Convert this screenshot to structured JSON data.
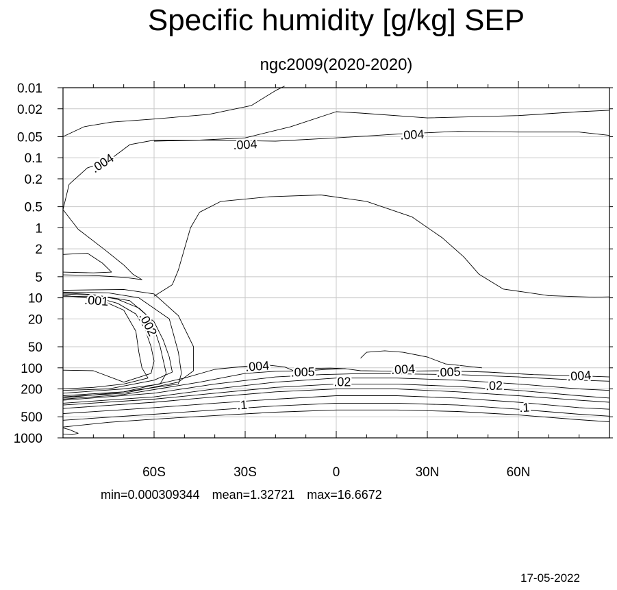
{
  "chart_data": {
    "type": "contour",
    "title": "Specific humidity [g/kg] SEP",
    "subtitle": "ngc2009(2020-2020)",
    "x_axis": {
      "range": [
        -90,
        90
      ],
      "tick_values": [
        -60,
        -30,
        0,
        30,
        60
      ],
      "tick_labels": [
        "60S",
        "30S",
        "0",
        "30N",
        "60N"
      ],
      "minor_step": 10
    },
    "y_axis": {
      "scale": "log",
      "direction": "inverted",
      "range": [
        0.01,
        1000
      ],
      "tick_values": [
        0.01,
        0.02,
        0.05,
        0.1,
        0.2,
        0.5,
        1,
        2,
        5,
        10,
        20,
        50,
        100,
        200,
        500,
        1000
      ],
      "tick_labels": [
        "0.01",
        "0.02",
        "0.05",
        "0.1",
        "0.2",
        "0.5",
        "1",
        "2",
        "5",
        "10",
        "20",
        "50",
        "100",
        "200",
        "500",
        "1000"
      ]
    },
    "grid": true,
    "contour_labels": [
      {
        "text": ".004",
        "lat": -77,
        "p": 0.12,
        "angle": -33
      },
      {
        "text": ".004",
        "lat": -30,
        "p": 0.065,
        "angle": -3
      },
      {
        "text": ".004",
        "lat": 25,
        "p": 0.047,
        "angle": -3
      },
      {
        "text": ".001",
        "lat": -79,
        "p": 11,
        "angle": 4
      },
      {
        "text": ".002",
        "lat": -62,
        "p": 24,
        "angle": 63
      },
      {
        "text": ".004",
        "lat": -26,
        "p": 95,
        "angle": -4
      },
      {
        "text": ".005",
        "lat": -11,
        "p": 115,
        "angle": -2
      },
      {
        "text": ".02",
        "lat": 2,
        "p": 160,
        "angle": 0
      },
      {
        "text": ".004",
        "lat": 22,
        "p": 105,
        "angle": -3
      },
      {
        "text": ".005",
        "lat": 37,
        "p": 115,
        "angle": -3
      },
      {
        "text": ".02",
        "lat": 52,
        "p": 180,
        "angle": -2
      },
      {
        "text": ".004",
        "lat": 80,
        "p": 130,
        "angle": -4
      },
      {
        "text": ".1",
        "lat": -31,
        "p": 340,
        "angle": -4
      },
      {
        "text": ".1",
        "lat": 62,
        "p": 370,
        "angle": -3
      }
    ],
    "contours": [
      [
        [
          -90,
          0.05
        ],
        [
          -83,
          0.036
        ],
        [
          -74,
          0.031
        ],
        [
          -60,
          0.028
        ],
        [
          -42,
          0.024
        ],
        [
          -28,
          0.018
        ],
        [
          -20,
          0.011
        ],
        [
          -17,
          0.0095
        ]
      ],
      [
        [
          -90,
          0.55
        ],
        [
          -88,
          0.24
        ],
        [
          -82,
          0.14
        ],
        [
          -75,
          0.11
        ],
        [
          -68,
          0.065
        ],
        [
          -60,
          0.056
        ],
        [
          -40,
          0.056
        ],
        [
          -20,
          0.058
        ],
        [
          0,
          0.052
        ],
        [
          20,
          0.046
        ],
        [
          40,
          0.042
        ],
        [
          60,
          0.043
        ],
        [
          80,
          0.043
        ],
        [
          90,
          0.048
        ]
      ],
      [
        [
          -60,
          0.058
        ],
        [
          -45,
          0.056
        ],
        [
          -30,
          0.052
        ],
        [
          -15,
          0.036
        ],
        [
          0,
          0.022
        ],
        [
          8,
          0.023
        ],
        [
          30,
          0.027
        ],
        [
          60,
          0.025
        ],
        [
          80,
          0.022
        ],
        [
          90,
          0.021
        ]
      ],
      [
        [
          -90,
          0.55
        ],
        [
          -85,
          1.05
        ],
        [
          -76,
          2.1
        ],
        [
          -70,
          3.4
        ],
        [
          -67,
          4.6
        ],
        [
          -64,
          5.5
        ],
        [
          -70,
          5.1
        ],
        [
          -80,
          4.8
        ],
        [
          -90,
          4.7
        ]
      ],
      [
        [
          -90,
          2.4
        ],
        [
          -82,
          2.3
        ],
        [
          -77,
          3.2
        ],
        [
          -74,
          4.3
        ],
        [
          -80,
          4.4
        ],
        [
          -90,
          4.3
        ]
      ],
      [
        [
          -90,
          8.5
        ],
        [
          -80,
          9
        ],
        [
          -72,
          10.5
        ],
        [
          -65,
          14
        ],
        [
          -60,
          22
        ],
        [
          -57,
          40
        ],
        [
          -55,
          70
        ],
        [
          -54,
          115
        ],
        [
          -60,
          150
        ],
        [
          -75,
          200
        ],
        [
          -90,
          210
        ]
      ],
      [
        [
          -90,
          9.5
        ],
        [
          -80,
          9.6
        ],
        [
          -72,
          12
        ],
        [
          -66,
          17
        ],
        [
          -63,
          28
        ],
        [
          -61,
          50
        ],
        [
          -60,
          80
        ],
        [
          -61,
          120
        ],
        [
          -70,
          160
        ],
        [
          -80,
          110
        ],
        [
          -90,
          108
        ]
      ],
      [
        [
          -90,
          9.2
        ],
        [
          -78,
          10.5
        ],
        [
          -70,
          15
        ],
        [
          -66,
          30
        ],
        [
          -65,
          60
        ],
        [
          -64,
          100
        ],
        [
          -62,
          140
        ],
        [
          -70,
          170
        ],
        [
          -80,
          190
        ],
        [
          -90,
          200
        ]
      ],
      [
        [
          -90,
          8.8
        ],
        [
          -78,
          9.3
        ],
        [
          -68,
          11
        ],
        [
          -61,
          20
        ],
        [
          -58,
          50
        ],
        [
          -56,
          120
        ],
        [
          -58,
          170
        ],
        [
          -70,
          200
        ],
        [
          -90,
          230
        ]
      ],
      [
        [
          -90,
          8.3
        ],
        [
          -75,
          8.5
        ],
        [
          -65,
          10
        ],
        [
          -55,
          20
        ],
        [
          -52,
          60
        ],
        [
          -51,
          120
        ],
        [
          -52,
          170
        ],
        [
          -70,
          220
        ],
        [
          -90,
          250
        ]
      ],
      [
        [
          -90,
          7.8
        ],
        [
          -70,
          7.6
        ],
        [
          -60,
          8.8
        ],
        [
          -52,
          18
        ],
        [
          -47,
          50
        ],
        [
          -47,
          110
        ],
        [
          -52,
          160
        ],
        [
          -70,
          230
        ],
        [
          -90,
          260
        ]
      ],
      [
        [
          -90,
          270
        ],
        [
          -70,
          220
        ],
        [
          -50,
          140
        ],
        [
          -40,
          105
        ],
        [
          -30,
          95
        ],
        [
          -22,
          92
        ],
        [
          -17,
          97
        ],
        [
          -13,
          115
        ]
      ],
      [
        [
          -90,
          280
        ],
        [
          -70,
          240
        ],
        [
          -45,
          160
        ],
        [
          -30,
          120
        ],
        [
          -20,
          112
        ],
        [
          -10,
          110
        ],
        [
          -3,
          105
        ],
        [
          3,
          103
        ],
        [
          8,
          110
        ],
        [
          20,
          112
        ],
        [
          35,
          110
        ],
        [
          50,
          115
        ],
        [
          65,
          125
        ],
        [
          80,
          130
        ],
        [
          90,
          135
        ]
      ],
      [
        [
          -90,
          290
        ],
        [
          -60,
          230
        ],
        [
          -40,
          170
        ],
        [
          -20,
          135
        ],
        [
          -5,
          125
        ],
        [
          5,
          122
        ],
        [
          20,
          122
        ],
        [
          40,
          125
        ],
        [
          60,
          135
        ],
        [
          80,
          150
        ],
        [
          90,
          155
        ]
      ],
      [
        [
          -90,
          320
        ],
        [
          -60,
          260
        ],
        [
          -40,
          200
        ],
        [
          -20,
          160
        ],
        [
          0,
          140
        ],
        [
          20,
          140
        ],
        [
          40,
          150
        ],
        [
          60,
          170
        ],
        [
          80,
          200
        ],
        [
          90,
          210
        ]
      ],
      [
        [
          -90,
          340
        ],
        [
          -60,
          280
        ],
        [
          -40,
          230
        ],
        [
          -20,
          190
        ],
        [
          0,
          170
        ],
        [
          20,
          170
        ],
        [
          40,
          185
        ],
        [
          60,
          210
        ],
        [
          80,
          250
        ],
        [
          90,
          270
        ]
      ],
      [
        [
          -90,
          380
        ],
        [
          -60,
          310
        ],
        [
          -40,
          260
        ],
        [
          -20,
          220
        ],
        [
          0,
          200
        ],
        [
          20,
          200
        ],
        [
          40,
          220
        ],
        [
          60,
          250
        ],
        [
          80,
          290
        ],
        [
          90,
          310
        ]
      ],
      [
        [
          -90,
          450
        ],
        [
          -60,
          370
        ],
        [
          -40,
          320
        ],
        [
          -20,
          280
        ],
        [
          0,
          250
        ],
        [
          20,
          250
        ],
        [
          40,
          270
        ],
        [
          60,
          310
        ],
        [
          80,
          370
        ],
        [
          90,
          390
        ]
      ],
      [
        [
          -90,
          560
        ],
        [
          -60,
          460
        ],
        [
          -40,
          400
        ],
        [
          -20,
          350
        ],
        [
          0,
          320
        ],
        [
          20,
          320
        ],
        [
          40,
          340
        ],
        [
          60,
          390
        ],
        [
          80,
          460
        ],
        [
          90,
          490
        ]
      ],
      [
        [
          -90,
          700
        ],
        [
          -75,
          600
        ],
        [
          -60,
          540
        ],
        [
          -40,
          480
        ],
        [
          -20,
          430
        ],
        [
          0,
          400
        ],
        [
          20,
          400
        ],
        [
          40,
          420
        ],
        [
          60,
          470
        ],
        [
          80,
          550
        ],
        [
          90,
          590
        ]
      ],
      [
        [
          -90,
          720
        ],
        [
          -88,
          760
        ],
        [
          -85,
          860
        ],
        [
          -87,
          900
        ],
        [
          -90,
          880
        ]
      ],
      [
        [
          -60,
          9.5
        ],
        [
          -54,
          6.5
        ],
        [
          -52,
          4
        ],
        [
          -50,
          2
        ],
        [
          -48,
          1
        ],
        [
          -45,
          0.6
        ],
        [
          -38,
          0.42
        ],
        [
          -22,
          0.36
        ],
        [
          -5,
          0.34
        ],
        [
          10,
          0.42
        ],
        [
          25,
          0.7
        ],
        [
          35,
          1.4
        ],
        [
          42,
          2.6
        ],
        [
          47,
          4.6
        ],
        [
          55,
          7.5
        ],
        [
          70,
          9.3
        ],
        [
          85,
          9.8
        ],
        [
          90,
          9.7
        ]
      ],
      [
        [
          -13,
          100
        ],
        [
          -8,
          102
        ],
        [
          -2,
          101
        ],
        [
          3,
          103
        ]
      ],
      [
        [
          8,
          73
        ],
        [
          10,
          60
        ],
        [
          16,
          57
        ],
        [
          22,
          60
        ],
        [
          30,
          70
        ],
        [
          36,
          88
        ],
        [
          48,
          100
        ]
      ]
    ]
  },
  "stats": {
    "min": "min=0.000309344",
    "mean": "mean=1.32721",
    "max": "max=16.6672"
  },
  "date": "17-05-2022"
}
